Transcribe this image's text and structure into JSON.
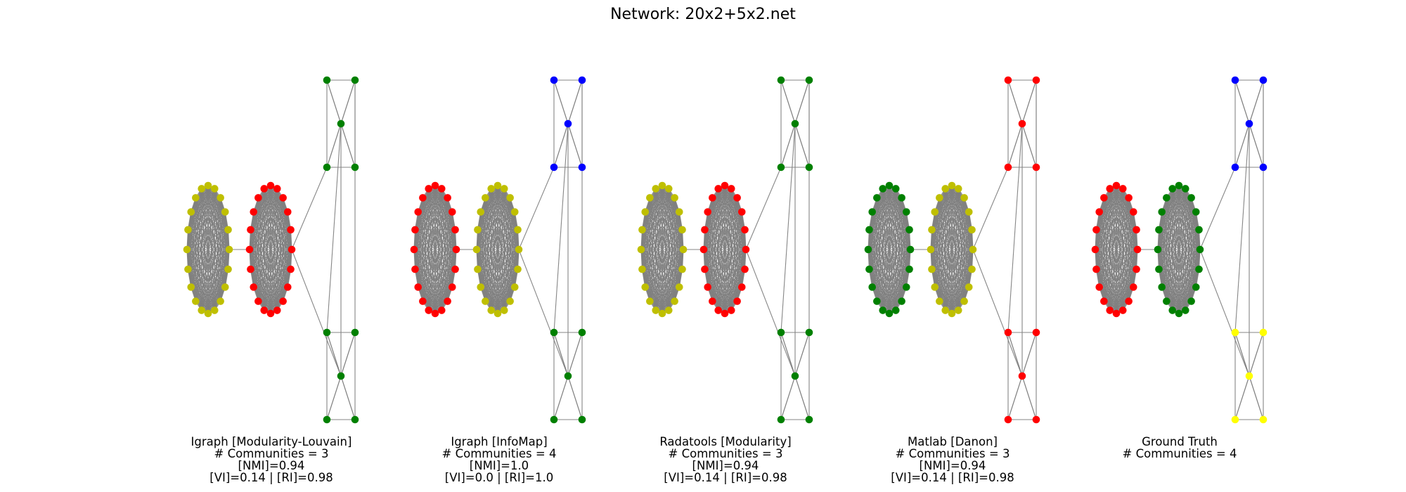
{
  "title": "Network: 20x2+5x2.net",
  "colors": {
    "edge": "#808080",
    "green": "#008000",
    "red": "#ff0000",
    "blue": "#0000ff",
    "olive_yellow": "#bfbf00",
    "yellow": "#ffff00"
  },
  "panels": [
    {
      "name": "Igraph [Modularity-Louvain]",
      "communities_text": "# Communities = 3",
      "nmi_text": "[NMI]=0.94",
      "vi_ri_text": "[VI]=0.14 | [RI]=0.98",
      "node_colors": {
        "clique_a": "olive_yellow",
        "clique_b": "red",
        "top_group": "green",
        "bottom_group": "green"
      }
    },
    {
      "name": "Igraph [InfoMap]",
      "communities_text": "# Communities = 4",
      "nmi_text": "[NMI]=1.0",
      "vi_ri_text": "[VI]=0.0 | [RI]=1.0",
      "node_colors": {
        "clique_a": "red",
        "clique_b": "olive_yellow",
        "top_group": "blue",
        "bottom_group": "green"
      }
    },
    {
      "name": "Radatools [Modularity]",
      "communities_text": "# Communities = 3",
      "nmi_text": "[NMI]=0.94",
      "vi_ri_text": "[VI]=0.14 | [RI]=0.98",
      "node_colors": {
        "clique_a": "olive_yellow",
        "clique_b": "red",
        "top_group": "green",
        "bottom_group": "green"
      }
    },
    {
      "name": "Matlab [Danon]",
      "communities_text": "# Communities = 3",
      "nmi_text": "[NMI]=0.94",
      "vi_ri_text": "[VI]=0.14 | [RI]=0.98",
      "node_colors": {
        "clique_a": "green",
        "clique_b": "olive_yellow",
        "top_group": "red",
        "bottom_group": "red"
      }
    },
    {
      "name": "Ground Truth",
      "communities_text": "# Communities = 4",
      "nmi_text": "",
      "vi_ri_text": "",
      "node_colors": {
        "clique_a": "red",
        "clique_b": "green",
        "top_group": "blue",
        "bottom_group": "yellow"
      }
    }
  ]
}
